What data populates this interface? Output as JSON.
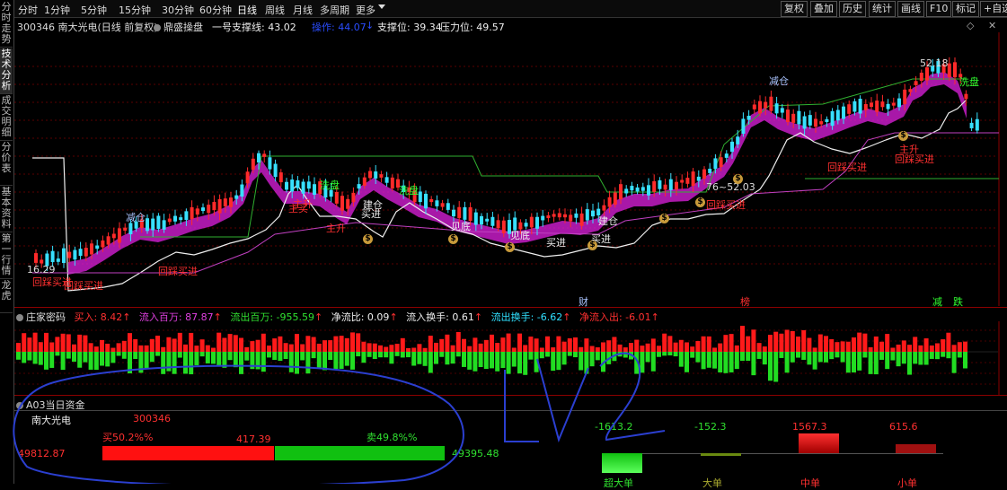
{
  "sidebar": {
    "tabs": [
      {
        "label": "分时走势"
      },
      {
        "label": "技术分析"
      },
      {
        "label": "成交明细"
      },
      {
        "label": "分价表"
      },
      {
        "label": "基本资料"
      },
      {
        "label": "第一行情"
      },
      {
        "label": "龙虎"
      }
    ]
  },
  "toolbar": {
    "timeframes": [
      "分时",
      "1分钟",
      "5分钟",
      "15分钟",
      "30分钟",
      "60分钟",
      "日线",
      "周线",
      "月线",
      "多周期",
      "更多"
    ],
    "right_buttons": [
      "复权",
      "叠加",
      "历史",
      "统计",
      "画线",
      "F10",
      "标记",
      "+自选"
    ]
  },
  "main_chart": {
    "stock_code_name": "300346 南大光电(日线 前复权)",
    "indicator_name": "鼎盛操盘",
    "support1_label": "一号支撑线: 43.02",
    "operate_label": "操作: 44.07",
    "support_label": "支撑位: 39.34",
    "pressure_label": "压力位: 49.57",
    "high_label": "52.18",
    "low_label": "16.29",
    "mid_label": "76~52.03",
    "annotations": [
      {
        "text": "减仓"
      },
      {
        "text": "减仓"
      },
      {
        "text": "洗盘"
      },
      {
        "text": "洗盘"
      },
      {
        "text": "洗盘"
      },
      {
        "text": "主升"
      },
      {
        "text": "主升"
      },
      {
        "text": "主升"
      },
      {
        "text": "回踩买进"
      },
      {
        "text": "回踩买进"
      },
      {
        "text": "回踩买进"
      },
      {
        "text": "回踩买进"
      },
      {
        "text": "回踩买进"
      },
      {
        "text": "回踩买进"
      },
      {
        "text": "买进"
      },
      {
        "text": "买进"
      },
      {
        "text": "买进"
      },
      {
        "text": "见底"
      },
      {
        "text": "见底"
      },
      {
        "text": "建仓"
      },
      {
        "text": "建仓"
      },
      {
        "text": "主买"
      }
    ],
    "event_labels": [
      "财",
      "榜",
      "减",
      "跌"
    ]
  },
  "capital_panel": {
    "title": "庄家密码",
    "items": [
      {
        "label": "买入: 8.42"
      },
      {
        "label": "流入百万: 87.87"
      },
      {
        "label": "流出百万: -955.59"
      },
      {
        "label": "净流比: 0.09"
      },
      {
        "label": "流入换手: 0.61"
      },
      {
        "label": "流出换手: -6.62"
      },
      {
        "label": "净流入出: -6.01"
      }
    ]
  },
  "fund_panel": {
    "title": "A03当日资金",
    "stock_name": "南大光电",
    "stock_code": "300346",
    "buy_pct": "买50.2%%",
    "sell_pct": "卖49.8%%",
    "left_value": "49812.87",
    "center_value": "417.39",
    "right_value": "49395.48",
    "flows": [
      {
        "value": "-1613.2",
        "label": "超大单",
        "amount": -1613.2
      },
      {
        "value": "-152.3",
        "label": "大单",
        "amount": -152.3
      },
      {
        "value": "1567.3",
        "label": "中单",
        "amount": 1567.3
      },
      {
        "value": "615.6",
        "label": "小单",
        "amount": 615.6
      }
    ]
  },
  "colors": {
    "up": "#ff2a2a",
    "down": "#38e0ff",
    "volume_up": "#ff1a1a",
    "volume_down": "#22dd22",
    "magenta_band": "#e020e0",
    "support_line": "#30b030",
    "baseline": "#c040c0"
  }
}
